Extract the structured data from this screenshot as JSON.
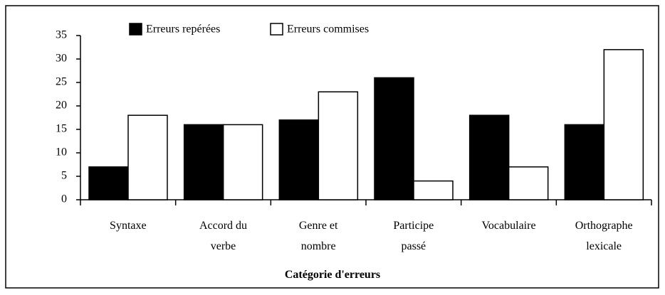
{
  "chart_data": {
    "type": "bar",
    "categories": [
      "Syntaxe",
      "Accord du\nverbe",
      "Genre et\nnombre",
      "Participe\npassé",
      "Vocabulaire",
      "Orthographe\nlexicale"
    ],
    "series": [
      {
        "name": "Erreurs repérées",
        "color": "#000000",
        "values": [
          7,
          16,
          17,
          26,
          18,
          16
        ]
      },
      {
        "name": "Erreurs commises",
        "color": "#ffffff",
        "values": [
          18,
          16,
          23,
          4,
          7,
          32
        ]
      }
    ],
    "x_label": "Catégorie d'erreurs",
    "ylim": [
      0,
      35
    ],
    "yticks": [
      0,
      5,
      10,
      15,
      20,
      25,
      30,
      35
    ],
    "grid": false,
    "legend": "top"
  }
}
